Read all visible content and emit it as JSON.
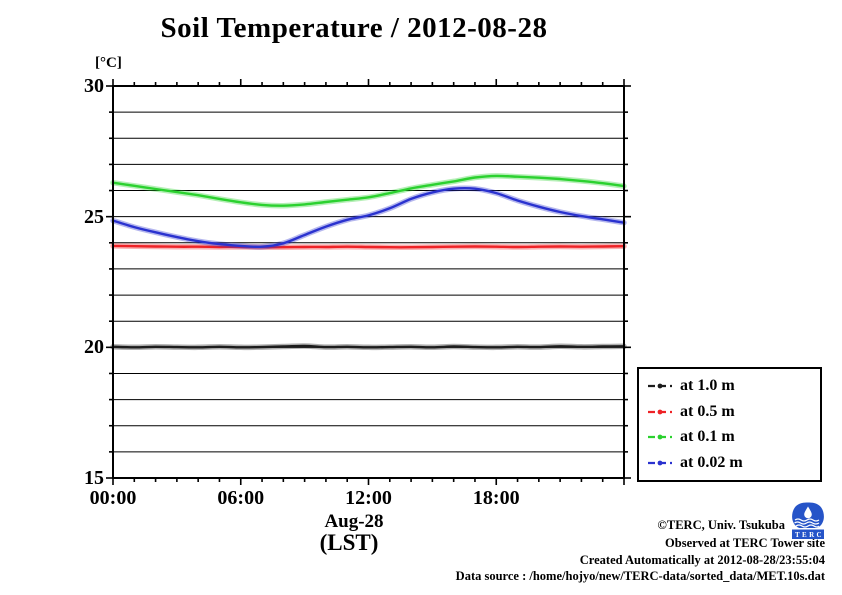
{
  "title": "Soil Temperature / 2012-08-28",
  "chart_data": {
    "type": "line",
    "title": "Soil Temperature / 2012-08-28",
    "unit_label": "[°C]",
    "xlabel_lines": [
      "Aug-28",
      "(LST)"
    ],
    "xlim_hours": [
      0,
      24
    ],
    "ylim": [
      15,
      30
    ],
    "ytick_major": [
      30,
      25,
      20,
      15
    ],
    "ytick_minor_step": 1,
    "grid": "horizontal lines every 1 °C",
    "xticks": [
      {
        "hour": 0,
        "label": "00:00"
      },
      {
        "hour": 6,
        "label": "06:00"
      },
      {
        "hour": 12,
        "label": "12:00"
      },
      {
        "hour": 18,
        "label": "18:00"
      }
    ],
    "xtick_minor_step_hours": 1,
    "legend_position": "outside-right-bottom",
    "x_hours": [
      0,
      1,
      2,
      3,
      4,
      5,
      6,
      7,
      8,
      9,
      10,
      11,
      12,
      13,
      14,
      15,
      16,
      17,
      18,
      19,
      20,
      21,
      22,
      23,
      24
    ],
    "series": [
      {
        "name": "at 1.0 m",
        "color": "#1c1c1c",
        "values": [
          20.02,
          20.0,
          20.02,
          20.01,
          20.0,
          20.02,
          20.0,
          20.01,
          20.03,
          20.05,
          20.01,
          20.02,
          20.0,
          20.01,
          20.02,
          20.0,
          20.03,
          20.01,
          20.0,
          20.02,
          20.01,
          20.04,
          20.02,
          20.03,
          20.04
        ]
      },
      {
        "name": "at 0.5 m",
        "color": "#ee2226",
        "values": [
          23.88,
          23.87,
          23.86,
          23.85,
          23.85,
          23.84,
          23.84,
          23.83,
          23.83,
          23.84,
          23.84,
          23.85,
          23.84,
          23.83,
          23.83,
          23.84,
          23.85,
          23.86,
          23.85,
          23.84,
          23.85,
          23.86,
          23.85,
          23.86,
          23.87
        ]
      },
      {
        "name": "at 0.1 m",
        "color": "#2bd12f",
        "values": [
          26.3,
          26.18,
          26.06,
          25.94,
          25.82,
          25.68,
          25.55,
          25.45,
          25.42,
          25.47,
          25.56,
          25.65,
          25.74,
          25.9,
          26.08,
          26.22,
          26.35,
          26.5,
          26.56,
          26.53,
          26.49,
          26.44,
          26.37,
          26.28,
          26.17
        ]
      },
      {
        "name": "at 0.02 m",
        "color": "#2a32cf",
        "values": [
          24.85,
          24.6,
          24.4,
          24.22,
          24.06,
          23.95,
          23.88,
          23.85,
          23.98,
          24.3,
          24.62,
          24.88,
          25.05,
          25.32,
          25.68,
          25.93,
          26.07,
          26.07,
          25.9,
          25.62,
          25.38,
          25.18,
          25.02,
          24.9,
          24.77
        ]
      }
    ]
  },
  "footer": {
    "lines": [
      "©TERC, Univ. Tsukuba",
      "Observed at TERC Tower site",
      "Created Automatically at 2012-08-28/23:55:04",
      "Data source : /home/hojyo/new/TERC-data/sorted_data/MET.10s.dat"
    ]
  },
  "logo": {
    "text": "TERC",
    "color": "#2654c8"
  }
}
